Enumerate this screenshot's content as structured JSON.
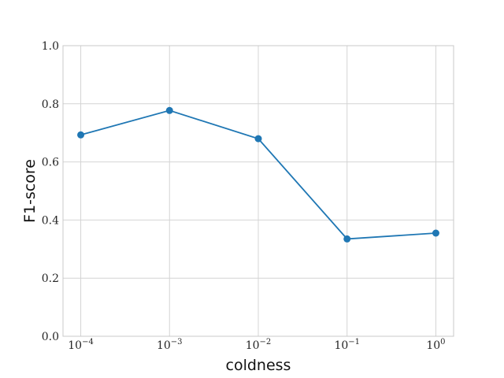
{
  "chart_data": {
    "type": "line",
    "x_scale": "log",
    "x": [
      0.0001,
      0.001,
      0.01,
      0.1,
      1
    ],
    "x_tick_labels": [
      {
        "base": "10",
        "exp": "−4"
      },
      {
        "base": "10",
        "exp": "−3"
      },
      {
        "base": "10",
        "exp": "−2"
      },
      {
        "base": "10",
        "exp": "−1"
      },
      {
        "base": "10",
        "exp": "0"
      }
    ],
    "y_ticks": [
      "0.0",
      "0.2",
      "0.4",
      "0.6",
      "0.8",
      "1.0"
    ],
    "series": [
      {
        "values": [
          0.693,
          0.777,
          0.68,
          0.335,
          0.355
        ],
        "color": "#1f77b4"
      }
    ],
    "xlabel": "coldness",
    "ylabel": "F1-score",
    "ylim": [
      0,
      1.0
    ],
    "xlim_decades": [
      -4.2,
      0.2
    ],
    "grid": true
  }
}
